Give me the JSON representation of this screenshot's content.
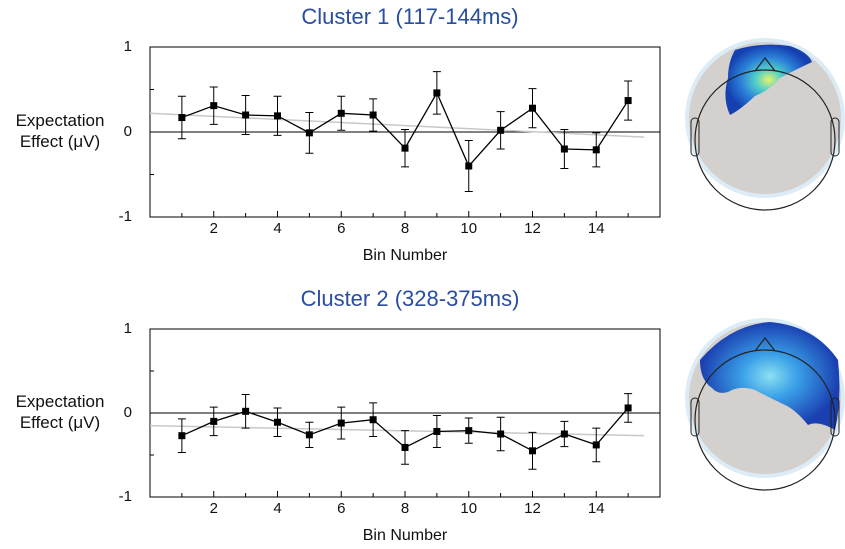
{
  "chart_data": [
    {
      "type": "line",
      "title": "Cluster 1 (117-144ms)",
      "xlabel": "Bin Number",
      "ylabel": "Expectation Effect (μV)",
      "x": [
        1,
        2,
        3,
        4,
        5,
        6,
        7,
        8,
        9,
        10,
        11,
        12,
        13,
        14,
        15
      ],
      "values": [
        0.17,
        0.31,
        0.2,
        0.19,
        -0.01,
        0.22,
        0.2,
        -0.19,
        0.46,
        -0.4,
        0.02,
        0.28,
        -0.2,
        -0.21,
        0.37
      ],
      "errors": [
        0.25,
        0.22,
        0.23,
        0.23,
        0.24,
        0.2,
        0.19,
        0.22,
        0.25,
        0.3,
        0.22,
        0.23,
        0.23,
        0.2,
        0.23
      ],
      "color": "#000000",
      "trend": {
        "x": [
          0,
          15.5
        ],
        "values": [
          0.22,
          -0.06
        ],
        "color": "#c8c8c8"
      },
      "xlim": [
        0,
        16
      ],
      "xticks": [
        2,
        4,
        6,
        8,
        10,
        12,
        14
      ],
      "xminor": [
        1,
        3,
        5,
        7,
        9,
        11,
        13,
        15
      ],
      "ylim": [
        -1,
        1
      ],
      "yticks": [
        -1,
        0,
        1
      ],
      "yminor": [
        -0.5,
        0.5
      ],
      "zero_line": true
    },
    {
      "type": "line",
      "title": "Cluster 2 (328-375ms)",
      "xlabel": "Bin Number",
      "ylabel": "Expectation Effect (μV)",
      "x": [
        1,
        2,
        3,
        4,
        5,
        6,
        7,
        8,
        9,
        10,
        11,
        12,
        13,
        14,
        15
      ],
      "values": [
        -0.27,
        -0.1,
        0.02,
        -0.11,
        -0.26,
        -0.12,
        -0.08,
        -0.41,
        -0.22,
        -0.21,
        -0.25,
        -0.45,
        -0.25,
        -0.38,
        0.06
      ],
      "errors": [
        0.2,
        0.17,
        0.2,
        0.17,
        0.15,
        0.19,
        0.2,
        0.2,
        0.19,
        0.15,
        0.2,
        0.22,
        0.15,
        0.2,
        0.17
      ],
      "color": "#000000",
      "trend": {
        "x": [
          0,
          15.5
        ],
        "values": [
          -0.15,
          -0.27
        ],
        "color": "#c8c8c8"
      },
      "xlim": [
        0,
        16
      ],
      "xticks": [
        2,
        4,
        6,
        8,
        10,
        12,
        14
      ],
      "xminor": [
        1,
        3,
        5,
        7,
        9,
        11,
        13,
        15
      ],
      "ylim": [
        -1,
        1
      ],
      "yticks": [
        -1,
        0,
        1
      ],
      "yminor": [
        -0.5,
        0.5
      ],
      "zero_line": true
    }
  ]
}
